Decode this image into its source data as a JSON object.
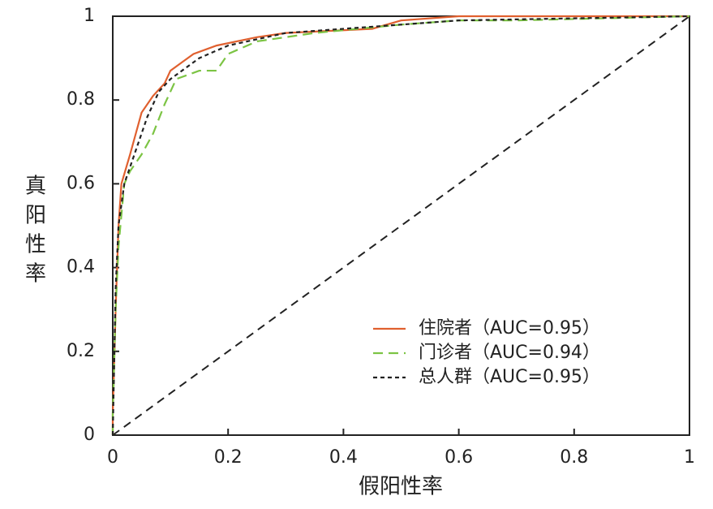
{
  "chart_data": {
    "type": "line",
    "xlabel": "假阳性率",
    "ylabel": "真阳性率",
    "xlim": [
      0,
      1
    ],
    "ylim": [
      0,
      1
    ],
    "xticks": [
      0,
      0.2,
      0.4,
      0.6,
      0.8,
      1
    ],
    "yticks": [
      0,
      0.2,
      0.4,
      0.6,
      0.8,
      1
    ],
    "legend": "lower right",
    "series": [
      {
        "name": "住院者（AUC=0.95）",
        "color": "#e0602f",
        "dash": "solid",
        "x": [
          0,
          0,
          0.005,
          0.01,
          0.015,
          0.03,
          0.04,
          0.05,
          0.07,
          0.09,
          0.1,
          0.12,
          0.14,
          0.18,
          0.25,
          0.3,
          0.45,
          0.5,
          0.6,
          1
        ],
        "values": [
          0,
          0.05,
          0.3,
          0.5,
          0.6,
          0.67,
          0.72,
          0.77,
          0.81,
          0.84,
          0.87,
          0.89,
          0.91,
          0.93,
          0.95,
          0.96,
          0.97,
          0.99,
          1,
          1
        ]
      },
      {
        "name": "门诊者（AUC=0.94）",
        "color": "#7cc444",
        "dash": "dashed",
        "x": [
          0,
          0,
          0.005,
          0.01,
          0.02,
          0.03,
          0.05,
          0.07,
          0.09,
          0.11,
          0.15,
          0.18,
          0.2,
          0.25,
          0.35,
          0.5,
          0.6,
          0.7,
          1
        ],
        "values": [
          0,
          0.05,
          0.3,
          0.45,
          0.6,
          0.63,
          0.67,
          0.72,
          0.79,
          0.85,
          0.87,
          0.87,
          0.91,
          0.94,
          0.96,
          0.98,
          0.99,
          0.99,
          1
        ]
      },
      {
        "name": "总人群（AUC=0.95）",
        "color": "#222222",
        "dash": "dotted",
        "x": [
          0,
          0.005,
          0.01,
          0.02,
          0.04,
          0.06,
          0.08,
          0.1,
          0.15,
          0.2,
          0.3,
          0.5,
          0.6,
          1
        ],
        "values": [
          0,
          0.35,
          0.5,
          0.6,
          0.68,
          0.76,
          0.82,
          0.85,
          0.9,
          0.93,
          0.96,
          0.98,
          0.99,
          1
        ]
      }
    ]
  }
}
